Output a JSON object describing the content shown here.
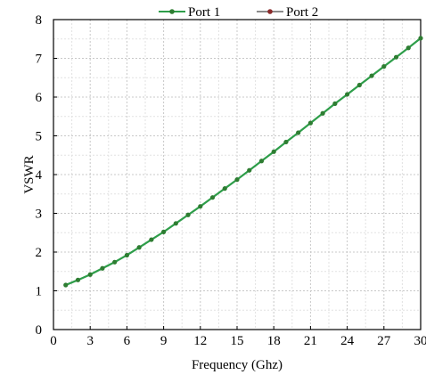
{
  "chart_data": {
    "type": "line",
    "xlabel": "Frequency (Ghz)",
    "ylabel": "VSWR",
    "xlim": [
      0,
      30
    ],
    "ylim": [
      0,
      8
    ],
    "xticks": [
      0,
      3,
      6,
      9,
      12,
      15,
      18,
      21,
      24,
      27,
      30
    ],
    "yticks": [
      0,
      1,
      2,
      3,
      4,
      5,
      6,
      7,
      8
    ],
    "grid": true,
    "legend_position": "top",
    "x": [
      1,
      2,
      3,
      4,
      5,
      6,
      7,
      8,
      9,
      10,
      11,
      12,
      13,
      14,
      15,
      16,
      17,
      18,
      19,
      20,
      21,
      22,
      23,
      24,
      25,
      26,
      27,
      28,
      29,
      30
    ],
    "series": [
      {
        "name": "Port 1",
        "color": "#2e9e4a",
        "marker_color": "#2e7d32",
        "values": [
          1.15,
          1.28,
          1.42,
          1.58,
          1.74,
          1.92,
          2.12,
          2.32,
          2.52,
          2.74,
          2.96,
          3.18,
          3.41,
          3.64,
          3.87,
          4.11,
          4.35,
          4.59,
          4.84,
          5.08,
          5.33,
          5.58,
          5.83,
          6.07,
          6.31,
          6.55,
          6.79,
          7.03,
          7.27,
          7.52
        ]
      },
      {
        "name": "Port 2",
        "color": "#8c8c8c",
        "marker_color": "#8b2a2a",
        "values": [
          1.15,
          1.28,
          1.42,
          1.58,
          1.74,
          1.92,
          2.12,
          2.32,
          2.52,
          2.74,
          2.96,
          3.18,
          3.41,
          3.64,
          3.87,
          4.11,
          4.35,
          4.59,
          4.84,
          5.08,
          5.33,
          5.58,
          5.83,
          6.07,
          6.31,
          6.55,
          6.79,
          7.03,
          7.27,
          7.52
        ]
      }
    ]
  }
}
